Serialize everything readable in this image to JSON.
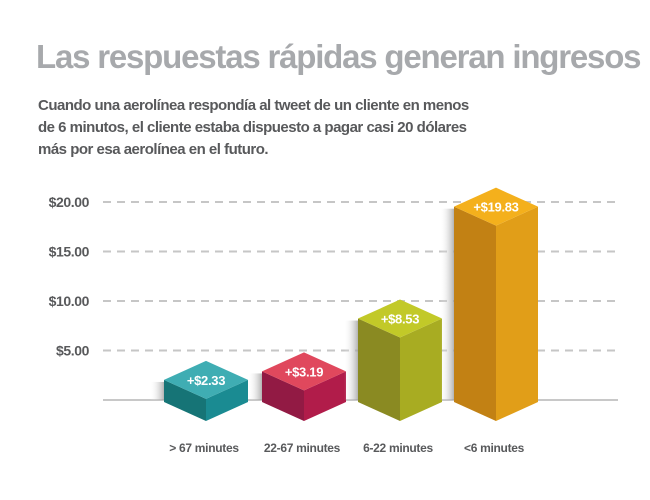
{
  "chart_data": {
    "type": "bar",
    "title": "Las respuestas rápidas generan ingresos",
    "subtitle_lines": [
      "Cuando una aerolínea respondía al tweet de un cliente en menos",
      "de 6 minutos, el cliente estaba dispuesto a pagar casi 20 dólares",
      "más por esa aerolínea en el futuro."
    ],
    "xlabel": "",
    "ylabel": "",
    "categories": [
      "> 67 minutes",
      "22-67 minutes",
      "6-22 minutes",
      "<6 minutes"
    ],
    "values": [
      2.33,
      3.19,
      8.53,
      19.83
    ],
    "data_labels": [
      "+$2.33",
      "+$3.19",
      "+$8.53",
      "+$19.83"
    ],
    "yticks": [
      5,
      10,
      15,
      20
    ],
    "ytick_labels": [
      "$5.00",
      "$10.00",
      "$15.00",
      "$20.00"
    ],
    "ylim": [
      0,
      20
    ],
    "grid": true,
    "legend": "none",
    "colors": [
      {
        "top": "#3fadb3",
        "left": "#167476",
        "right": "#1a8b92"
      },
      {
        "top": "#e0485d",
        "left": "#921a44",
        "right": "#b11c4a"
      },
      {
        "top": "#c2c928",
        "left": "#8a8a22",
        "right": "#a8ac22"
      },
      {
        "top": "#f4b01c",
        "left": "#c28114",
        "right": "#e19e18"
      }
    ]
  }
}
